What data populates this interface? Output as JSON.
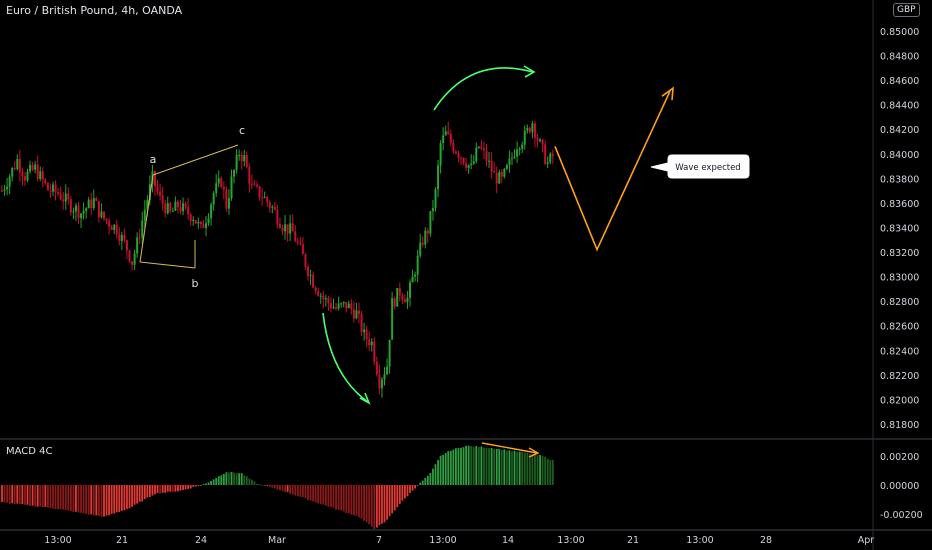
{
  "header": {
    "title": "Euro / British Pound, 4h, OANDA",
    "currency_badge": "GBP"
  },
  "indicator": {
    "name": "MACD 4C"
  },
  "annotations": {
    "wave_a": "a",
    "wave_b": "b",
    "wave_c": "c",
    "callout": "Wave expected"
  },
  "colors": {
    "up": "#26a52f",
    "down": "#c8102e",
    "macd_up": "#2ea043",
    "macd_down": "#b71c1c",
    "arrow_green": "#4cff6a",
    "arrow_orange": "#ff9f1c",
    "wedge": "#d9b85a",
    "grid": "#9598a1"
  },
  "chart_data": {
    "type": "candlestick",
    "title": "Euro / British Pound, 4h, OANDA",
    "price_axis": {
      "ticks": [
        "0.85000",
        "0.84800",
        "0.84600",
        "0.84400",
        "0.84200",
        "0.84000",
        "0.83800",
        "0.83600",
        "0.83400",
        "0.83200",
        "0.83000",
        "0.82800",
        "0.82600",
        "0.82400",
        "0.82200",
        "0.82000",
        "0.81800"
      ],
      "range": [
        0.8175,
        0.8533
      ]
    },
    "macd_axis": {
      "ticks": [
        "0.00200",
        "0.00000",
        "-0.00200"
      ],
      "range": [
        -0.0031,
        0.0033
      ]
    },
    "time_axis": {
      "labels": [
        "13:00",
        "21",
        "24",
        "Mar",
        "7",
        "13:00",
        "14",
        "13:00",
        "21",
        "13:00",
        "28",
        "Apr"
      ]
    },
    "price_path": [
      [
        0,
        0.837
      ],
      [
        6,
        0.8395
      ],
      [
        9,
        0.8382
      ],
      [
        13,
        0.8388
      ],
      [
        18,
        0.8371
      ],
      [
        22,
        0.8368
      ],
      [
        27,
        0.8358
      ],
      [
        31,
        0.8352
      ],
      [
        36,
        0.8362
      ],
      [
        39,
        0.8349
      ],
      [
        45,
        0.8339
      ],
      [
        49,
        0.8323
      ],
      [
        51,
        0.8312
      ],
      [
        53,
        0.8327
      ],
      [
        56,
        0.8355
      ],
      [
        59,
        0.838
      ],
      [
        62,
        0.8363
      ],
      [
        66,
        0.8351
      ],
      [
        69,
        0.8358
      ],
      [
        72,
        0.8353
      ],
      [
        75,
        0.8349
      ],
      [
        78,
        0.8338
      ],
      [
        81,
        0.8353
      ],
      [
        83,
        0.8368
      ],
      [
        86,
        0.8378
      ],
      [
        88,
        0.8358
      ],
      [
        90,
        0.8378
      ],
      [
        93,
        0.8401
      ],
      [
        95,
        0.8396
      ],
      [
        98,
        0.8372
      ],
      [
        102,
        0.8366
      ],
      [
        106,
        0.8356
      ],
      [
        110,
        0.8342
      ],
      [
        114,
        0.8336
      ],
      [
        118,
        0.8316
      ],
      [
        122,
        0.8296
      ],
      [
        126,
        0.8282
      ],
      [
        131,
        0.8274
      ],
      [
        135,
        0.8277
      ],
      [
        139,
        0.827
      ],
      [
        142,
        0.8252
      ],
      [
        145,
        0.8246
      ],
      [
        148,
        0.8215
      ],
      [
        151,
        0.8228
      ],
      [
        153,
        0.8278
      ],
      [
        156,
        0.8288
      ],
      [
        159,
        0.8282
      ],
      [
        162,
        0.8306
      ],
      [
        165,
        0.833
      ],
      [
        167,
        0.8338
      ],
      [
        170,
        0.8368
      ],
      [
        172,
        0.8408
      ],
      [
        174,
        0.8416
      ],
      [
        177,
        0.8406
      ],
      [
        181,
        0.8396
      ],
      [
        184,
        0.8388
      ],
      [
        187,
        0.8406
      ],
      [
        190,
        0.8396
      ],
      [
        193,
        0.8382
      ],
      [
        196,
        0.8378
      ],
      [
        199,
        0.8392
      ],
      [
        202,
        0.8408
      ],
      [
        205,
        0.8414
      ],
      [
        208,
        0.8426
      ],
      [
        210,
        0.8412
      ],
      [
        212,
        0.8402
      ],
      [
        214,
        0.8392
      ],
      [
        216,
        0.8398
      ]
    ],
    "macd_path": [
      [
        0,
        -0.0012
      ],
      [
        20,
        -0.0016
      ],
      [
        40,
        -0.0022
      ],
      [
        50,
        -0.0016
      ],
      [
        60,
        -0.0006
      ],
      [
        70,
        -0.0004
      ],
      [
        80,
        0.0001
      ],
      [
        88,
        0.0009
      ],
      [
        94,
        0.0008
      ],
      [
        100,
        0.0001
      ],
      [
        110,
        -0.0004
      ],
      [
        120,
        -0.001
      ],
      [
        130,
        -0.0016
      ],
      [
        140,
        -0.0022
      ],
      [
        146,
        -0.003
      ],
      [
        150,
        -0.0026
      ],
      [
        156,
        -0.0013
      ],
      [
        162,
        -0.0002
      ],
      [
        168,
        0.0008
      ],
      [
        172,
        0.002
      ],
      [
        176,
        0.0024
      ],
      [
        182,
        0.0027
      ],
      [
        190,
        0.0026
      ],
      [
        198,
        0.0024
      ],
      [
        206,
        0.0022
      ],
      [
        212,
        0.002
      ],
      [
        216,
        0.0017
      ]
    ],
    "wave_projection": [
      [
        0.8406
      ],
      [
        0.8322
      ],
      [
        0.8451
      ]
    ]
  }
}
